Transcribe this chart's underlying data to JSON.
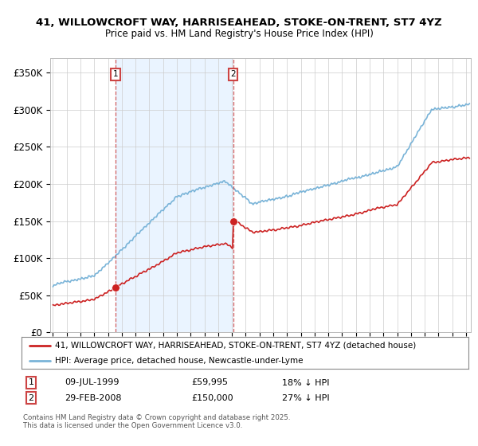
{
  "title_line1": "41, WILLOWCROFT WAY, HARRISEAHEAD, STOKE-ON-TRENT, ST7 4YZ",
  "title_line2": "Price paid vs. HM Land Registry's House Price Index (HPI)",
  "ylim": [
    0,
    370000
  ],
  "yticks": [
    0,
    50000,
    100000,
    150000,
    200000,
    250000,
    300000,
    350000
  ],
  "ytick_labels": [
    "£0",
    "£50K",
    "£100K",
    "£150K",
    "£200K",
    "£250K",
    "£300K",
    "£350K"
  ],
  "line_color_hpi": "#7ab4d8",
  "line_color_price": "#cc2222",
  "vline_color": "#cc4444",
  "shade_color": "#ddeeff",
  "legend_label_price": "41, WILLOWCROFT WAY, HARRISEAHEAD, STOKE-ON-TRENT, ST7 4YZ (detached house)",
  "legend_label_hpi": "HPI: Average price, detached house, Newcastle-under-Lyme",
  "annotation1_date": "09-JUL-1999",
  "annotation1_price": "£59,995",
  "annotation1_hpi": "18% ↓ HPI",
  "annotation2_date": "29-FEB-2008",
  "annotation2_price": "£150,000",
  "annotation2_hpi": "27% ↓ HPI",
  "footer_text": "Contains HM Land Registry data © Crown copyright and database right 2025.\nThis data is licensed under the Open Government Licence v3.0.",
  "background_color": "#ffffff",
  "grid_color": "#cccccc",
  "sale1_t": 1999.542,
  "sale1_price": 59995,
  "sale2_t": 2008.083,
  "sale2_price": 150000
}
